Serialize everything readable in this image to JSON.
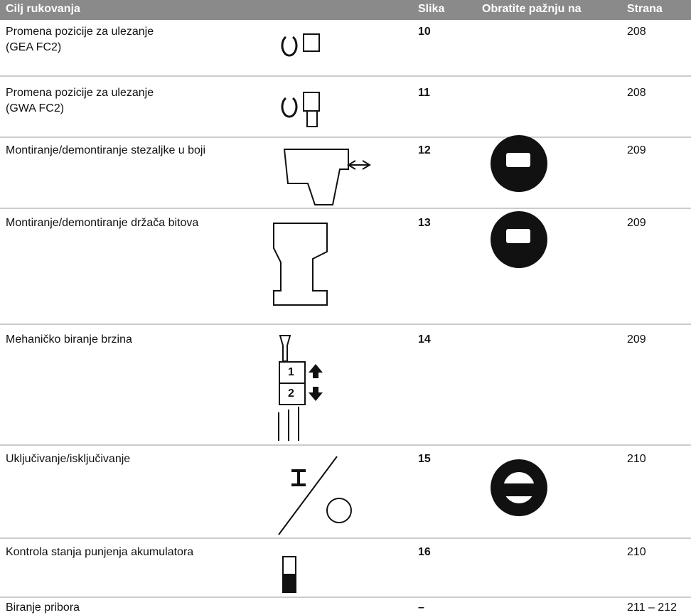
{
  "table": {
    "header": [
      "Cilj rukovanja",
      "Slika",
      "Obratite pažnju na",
      "Strana"
    ],
    "rows": [
      {
        "label": [
          "Promena pozicije za ulezanje",
          "(GEA FC2)"
        ],
        "figure": "10",
        "page": "208"
      },
      {
        "label": [
          "Promena pozicije za ulezanje",
          "(GWA FC2)"
        ],
        "figure": "11",
        "page": "208"
      },
      {
        "label": [
          "Montiranje/demontiranje stezaljke u boji"
        ],
        "figure": "12",
        "page": "209"
      },
      {
        "label": [
          "Montiranje/demontiranje držača bitova"
        ],
        "figure": "13",
        "page": "209"
      },
      {
        "label": [
          "Mehaničko biranje brzina"
        ],
        "figure": "14",
        "page": "209",
        "icon_labels": [
          "1",
          "2"
        ]
      },
      {
        "label": [
          "Uključivanje/isključivanje"
        ],
        "figure": "15",
        "page": "210"
      },
      {
        "label": [
          "Kontrola stanja punjenja akumulatora"
        ],
        "figure": "16",
        "page": "210"
      },
      {
        "label": [
          "Biranje pribora"
        ],
        "figure": "–",
        "page": "211 – 212"
      }
    ]
  }
}
